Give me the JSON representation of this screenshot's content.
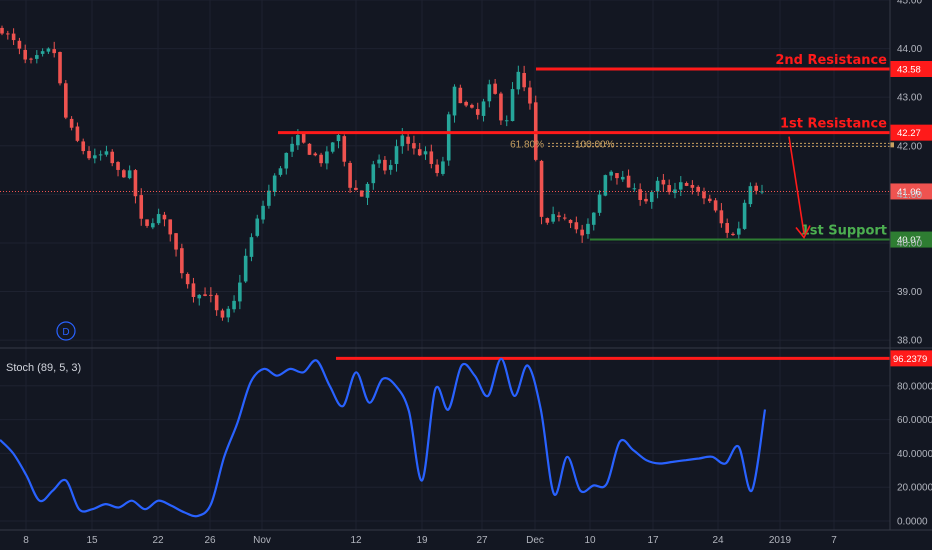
{
  "chart_data": [
    {
      "type": "candlestick",
      "title": "",
      "interval_badge": "D",
      "ylim": [
        37.9,
        45.0
      ],
      "y_ticks": [
        "38.00",
        "39.00",
        "40.00",
        "41.00",
        "42.00",
        "43.00",
        "44.00",
        "45.00"
      ],
      "x_ticks": [
        "8",
        "15",
        "22",
        "26",
        "Nov",
        "12",
        "19",
        "27",
        "Dec",
        "10",
        "17",
        "24",
        "2019",
        "7"
      ],
      "current_price": {
        "label": "41.06",
        "value": 41.06
      },
      "price_path": [
        44.4,
        44.1,
        43.65,
        43.85,
        44.0,
        42.5,
        42.0,
        41.7,
        41.85,
        41.45,
        41.4,
        40.2,
        40.6,
        40.3,
        39.4,
        38.9,
        39.0,
        38.35,
        38.75,
        39.8,
        40.6,
        41.25,
        41.8,
        42.15,
        41.85,
        41.65,
        42.3,
        41.2,
        40.95,
        41.7,
        41.45,
        42.25,
        41.9,
        41.8,
        41.25,
        43.2,
        42.8,
        42.6,
        43.3,
        42.35,
        43.55,
        42.8,
        40.2,
        40.6,
        40.55,
        40.1,
        40.6,
        41.55,
        41.35,
        41.05,
        40.9,
        41.25,
        40.95,
        41.3,
        41.0,
        40.85,
        40.3,
        40.1,
        41.25,
        41.06
      ],
      "series": [
        {
          "name": "2nd Resistance",
          "value": 43.58,
          "tag": "43.58",
          "color": "#ff1a1a"
        },
        {
          "name": "1st Resistance",
          "value": 42.27,
          "tag": "42.27",
          "color": "#ff1a1a"
        },
        {
          "name": "1st Support",
          "value": 40.07,
          "tag": "40.07",
          "color": "#2e7d32"
        }
      ],
      "fib": [
        {
          "label": "61.80%",
          "value": 42.05
        },
        {
          "label": "100.00%",
          "value": 42.05
        }
      ]
    },
    {
      "type": "line",
      "title": "Stoch (89, 5, 3)",
      "ylim": [
        0,
        100
      ],
      "y_ticks": [
        "0.0000",
        "20.0000",
        "40.0000",
        "60.0000",
        "80.0000"
      ],
      "level": {
        "value": 96.2379,
        "tag": "96.2379"
      },
      "series": [
        {
          "name": "",
          "color": "#2962ff",
          "values": [
            48,
            40,
            27,
            12,
            18,
            24,
            7,
            7,
            10,
            8,
            12,
            7,
            12,
            9,
            5,
            3,
            10,
            38,
            58,
            82,
            90,
            86,
            90,
            88,
            95,
            80,
            68,
            88,
            70,
            84,
            80,
            65,
            24,
            78,
            66,
            92,
            86,
            74,
            96,
            74,
            92,
            66,
            16,
            38,
            18,
            21,
            22,
            47,
            42,
            36,
            34,
            35,
            36,
            37,
            38,
            34,
            44,
            18,
            66
          ]
        }
      ]
    }
  ]
}
